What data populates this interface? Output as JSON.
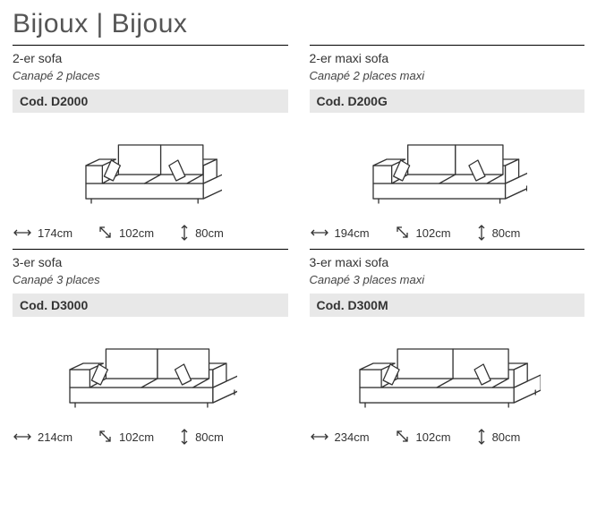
{
  "title": "Bijoux | Bijoux",
  "title_color": "#555555",
  "title_fontsize": 30,
  "code_bg": "#e8e8e8",
  "line_color": "#000000",
  "sofa_stroke": "#333333",
  "sofa_fill": "#ffffff",
  "products": [
    {
      "name_en": "2-er sofa",
      "name_fr": "Canapé 2 places",
      "code": "Cod. D2000",
      "sofa_svg_width": 160,
      "width": "174cm",
      "depth": "102cm",
      "height": "80cm"
    },
    {
      "name_en": "2-er maxi sofa",
      "name_fr": "Canapé 2 places maxi",
      "code": "Cod. D200G",
      "sofa_svg_width": 180,
      "width": "194cm",
      "depth": "102cm",
      "height": "80cm"
    },
    {
      "name_en": "3-er sofa",
      "name_fr": "Canapé 3 places",
      "code": "Cod. D3000",
      "sofa_svg_width": 195,
      "width": "214cm",
      "depth": "102cm",
      "height": "80cm"
    },
    {
      "name_en": "3-er maxi sofa",
      "name_fr": "Canapé 3 places maxi",
      "code": "Cod. D300M",
      "sofa_svg_width": 210,
      "width": "234cm",
      "depth": "102cm",
      "height": "80cm"
    }
  ],
  "icons": {
    "width_arrow": "↔",
    "depth_arrow": "↘",
    "height_arrow": "↕"
  }
}
